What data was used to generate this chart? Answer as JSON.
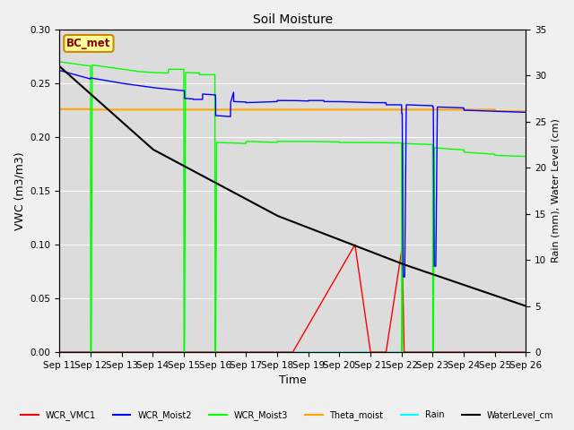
{
  "title": "Soil Moisture",
  "xlabel": "Time",
  "ylabel_left": "VWC (m3/m3)",
  "ylabel_right": "Rain (mm), Water Level (cm)",
  "annotation": "BC_met",
  "x_tick_labels": [
    "Sep 11",
    "Sep 12",
    "Sep 13",
    "Sep 14",
    "Sep 15",
    "Sep 16",
    "Sep 17",
    "Sep 18",
    "Sep 19",
    "Sep 20",
    "Sep 21",
    "Sep 22",
    "Sep 23",
    "Sep 24",
    "Sep 25",
    "Sep 26"
  ],
  "ylim_left": [
    0.0,
    0.3
  ],
  "ylim_right": [
    0,
    35
  ],
  "bg_color": "#dcdcdc",
  "fig_color": "#f0f0f0"
}
